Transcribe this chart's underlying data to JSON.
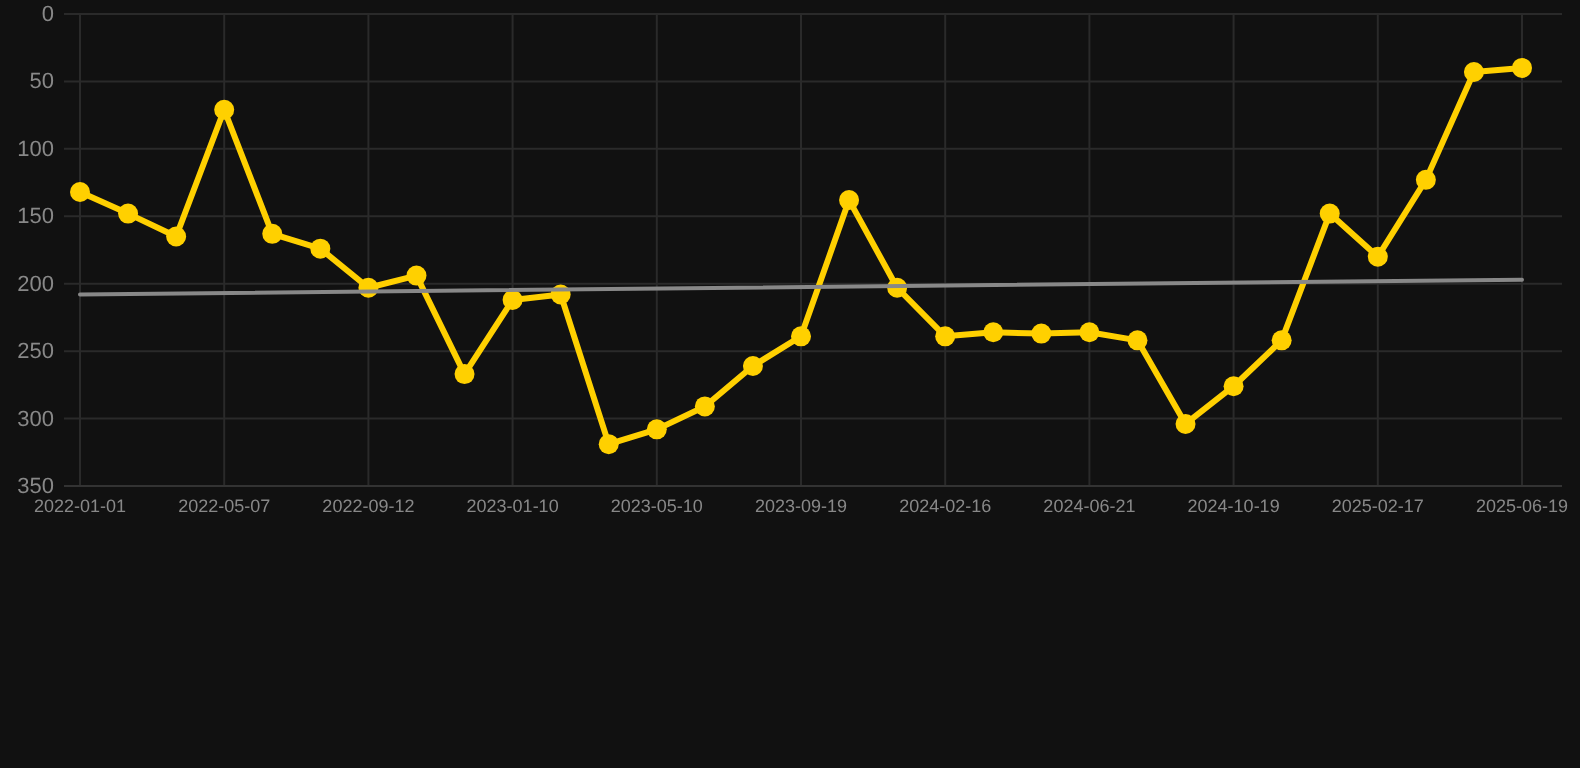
{
  "chart_data": {
    "type": "line",
    "categories": [
      "2022-01-01",
      null,
      null,
      "2022-05-07",
      null,
      null,
      "2022-09-12",
      null,
      null,
      "2023-01-10",
      null,
      null,
      "2023-05-10",
      null,
      null,
      "2023-09-19",
      null,
      null,
      "2024-02-16",
      null,
      null,
      "2024-06-21",
      null,
      null,
      "2024-10-19",
      null,
      null,
      "2025-02-17",
      null,
      null,
      "2025-06-19"
    ],
    "series": [
      {
        "color": "#ffd000",
        "values": [
          132,
          148,
          165,
          71,
          163,
          174,
          203,
          194,
          267,
          212,
          208,
          319,
          308,
          291,
          261,
          239,
          138,
          203,
          239,
          236,
          237,
          236,
          242,
          304,
          276,
          242,
          148,
          180,
          123,
          43,
          40
        ]
      },
      {
        "type": "line",
        "color": "#888888",
        "values": [
          208,
          null,
          null,
          null,
          null,
          null,
          null,
          null,
          null,
          null,
          null,
          null,
          null,
          null,
          null,
          null,
          null,
          null,
          null,
          null,
          null,
          null,
          null,
          null,
          null,
          null,
          null,
          null,
          null,
          null,
          197
        ],
        "marker": "none"
      }
    ],
    "ylim": [
      350,
      0
    ],
    "yticks": [
      0,
      50,
      100,
      150,
      200,
      250,
      300,
      350
    ],
    "grid": true,
    "marker": "circle",
    "line_style": "solid"
  }
}
